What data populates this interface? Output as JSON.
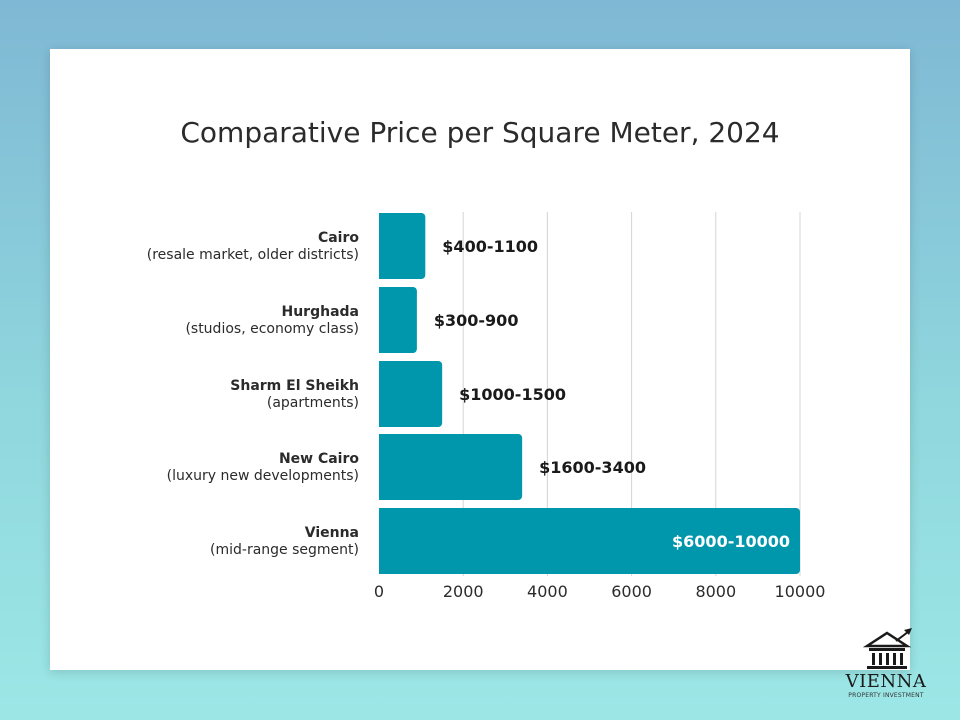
{
  "chart_data": {
    "type": "bar",
    "orientation": "horizontal",
    "title": "Comparative Price per Square Meter, 2024",
    "categories": [
      {
        "name": "Cairo",
        "detail": "(resale market, older districts)"
      },
      {
        "name": "Hurghada",
        "detail": "(studios, economy class)"
      },
      {
        "name": "Sharm El Sheikh",
        "detail": "(apartments)"
      },
      {
        "name": "New Cairo",
        "detail": "(luxury new developments)"
      },
      {
        "name": "Vienna",
        "detail": "(mid-range segment)"
      }
    ],
    "values": [
      1100,
      900,
      1500,
      3400,
      10000
    ],
    "value_labels": [
      "$400-1100",
      "$300-900",
      "$1000-1500",
      "$1600-3400",
      "$6000-10000"
    ],
    "xlim": [
      0,
      10000
    ],
    "xticks": [
      "0",
      "2000",
      "4000",
      "6000",
      "8000",
      "10000"
    ],
    "xlabel": "",
    "ylabel": "",
    "grid": true,
    "bar_color": "#0097ad",
    "grid_color": "#d4d4d4",
    "label_color": "#1a1a1a",
    "inside_label_color": "#ffffff"
  },
  "logo": {
    "name": "VIENNA",
    "subtitle": "PROPERTY INVESTMENT"
  }
}
